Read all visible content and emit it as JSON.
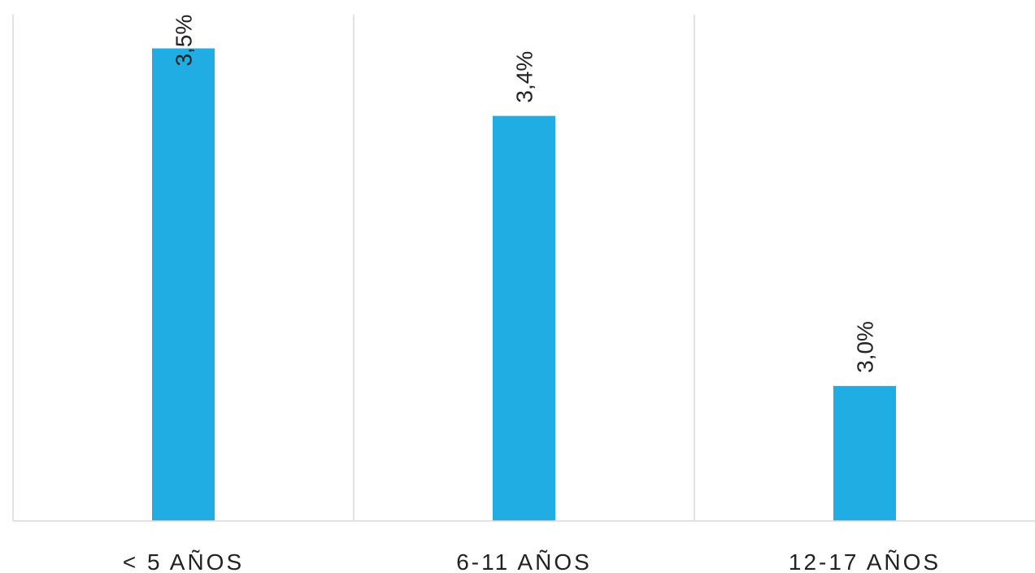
{
  "chart_data": {
    "type": "bar",
    "title": "",
    "xlabel": "",
    "ylabel": "",
    "categories": [
      "< 5 AÑOS",
      "6-11 AÑOS",
      "12-17 AÑOS"
    ],
    "values": [
      3.5,
      3.4,
      3.0
    ],
    "data_labels": [
      "3,5%",
      "3,4%",
      "3,0%"
    ],
    "ylim": [
      2.8,
      3.55
    ],
    "unit": "%",
    "grid": "vertical separators between categories",
    "legend": "none",
    "bar_color": "#1FADE4",
    "grid_color": "#D9D9D9",
    "text_color": "#222222"
  }
}
